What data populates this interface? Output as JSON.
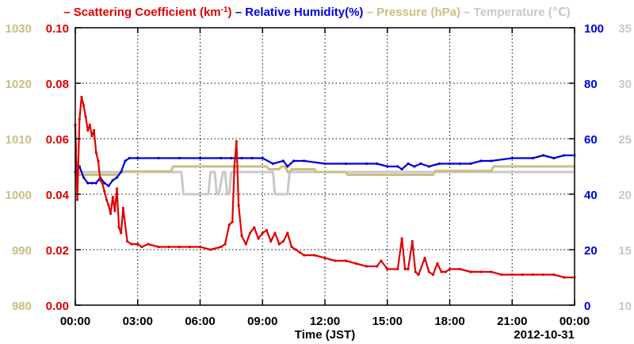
{
  "chart_data": {
    "type": "line",
    "legend": [
      {
        "key": "sc",
        "label": "– Scattering Coefficient (km",
        "sup": "-1",
        "tail": ")",
        "color": "#e00000"
      },
      {
        "key": "rh",
        "label": "– Relative Humidity(%)",
        "color": "#0000dd"
      },
      {
        "key": "pr",
        "label": "– Pressure (hPa)",
        "color": "#c9bf84"
      },
      {
        "key": "tp",
        "label": "– Temperature (℃)",
        "color": "#c8c8c8"
      }
    ],
    "xlabel": "Time (JST)",
    "date_label": "2012-10-31",
    "x_tick_labels": [
      "00:00",
      "03:00",
      "06:00",
      "09:00",
      "12:00",
      "15:00",
      "18:00",
      "21:00",
      "00:00"
    ],
    "xlim_hours": [
      0,
      24
    ],
    "axes": {
      "pressure": {
        "ylim": [
          980,
          1030
        ],
        "ticks": [
          "980",
          "990",
          "1000",
          "1010",
          "1020",
          "1030"
        ],
        "color": "#c9bf84"
      },
      "scattering": {
        "ylim": [
          0,
          0.1
        ],
        "ticks": [
          "0.00",
          "0.02",
          "0.04",
          "0.06",
          "0.08",
          "0.10"
        ],
        "color": "#e00000"
      },
      "humidity": {
        "ylim": [
          0,
          100
        ],
        "ticks": [
          "0",
          "20",
          "40",
          "60",
          "80",
          "100"
        ],
        "color": "#0000dd"
      },
      "temperature": {
        "ylim": [
          10,
          35
        ],
        "ticks": [
          "10",
          "15",
          "20",
          "25",
          "30",
          "35"
        ],
        "color": "#c8c8c8"
      }
    },
    "grid": true,
    "series": [
      {
        "name": "Scattering Coefficient",
        "axis": "scattering",
        "color": "#e00000",
        "markers": true,
        "x": [
          0,
          0.1,
          0.2,
          0.3,
          0.4,
          0.5,
          0.6,
          0.7,
          0.8,
          0.9,
          1.0,
          1.1,
          1.2,
          1.3,
          1.4,
          1.5,
          1.6,
          1.7,
          1.8,
          1.9,
          2.0,
          2.1,
          2.2,
          2.3,
          2.5,
          2.7,
          3.0,
          3.2,
          3.5,
          4.0,
          4.5,
          5.0,
          5.5,
          6.0,
          6.5,
          7.0,
          7.2,
          7.4,
          7.55,
          7.65,
          7.75,
          7.85,
          8.0,
          8.2,
          8.4,
          8.6,
          8.8,
          9.0,
          9.2,
          9.4,
          9.6,
          9.8,
          10.0,
          10.2,
          10.4,
          10.6,
          10.8,
          11.0,
          11.5,
          12.0,
          12.5,
          13.0,
          13.5,
          14.0,
          14.5,
          14.7,
          15.0,
          15.5,
          15.7,
          15.85,
          16.0,
          16.2,
          16.35,
          16.5,
          16.8,
          17.0,
          17.2,
          17.4,
          17.6,
          17.8,
          18.0,
          18.5,
          19.0,
          19.5,
          20.0,
          20.5,
          21.0,
          21.5,
          22.0,
          22.5,
          23.0,
          23.5,
          24.0
        ],
        "y": [
          0.065,
          0.038,
          0.067,
          0.075,
          0.072,
          0.068,
          0.063,
          0.065,
          0.061,
          0.063,
          0.055,
          0.052,
          0.045,
          0.044,
          0.041,
          0.038,
          0.036,
          0.033,
          0.039,
          0.034,
          0.042,
          0.028,
          0.026,
          0.035,
          0.023,
          0.022,
          0.022,
          0.021,
          0.022,
          0.021,
          0.021,
          0.021,
          0.021,
          0.021,
          0.02,
          0.021,
          0.022,
          0.029,
          0.03,
          0.05,
          0.059,
          0.036,
          0.025,
          0.022,
          0.026,
          0.028,
          0.024,
          0.026,
          0.027,
          0.023,
          0.026,
          0.022,
          0.023,
          0.026,
          0.021,
          0.02,
          0.019,
          0.018,
          0.018,
          0.017,
          0.016,
          0.016,
          0.015,
          0.014,
          0.014,
          0.016,
          0.013,
          0.013,
          0.024,
          0.013,
          0.013,
          0.023,
          0.012,
          0.011,
          0.017,
          0.012,
          0.011,
          0.015,
          0.012,
          0.012,
          0.013,
          0.013,
          0.012,
          0.012,
          0.012,
          0.011,
          0.011,
          0.011,
          0.011,
          0.011,
          0.011,
          0.01,
          0.01
        ]
      },
      {
        "name": "Relative Humidity",
        "axis": "humidity",
        "color": "#0000dd",
        "markers": true,
        "x": [
          0,
          0.2,
          0.4,
          0.6,
          0.8,
          1.0,
          1.2,
          1.4,
          1.6,
          1.8,
          2.0,
          2.2,
          2.4,
          2.6,
          3.0,
          4.0,
          5.0,
          6.0,
          7.0,
          7.5,
          8.0,
          8.5,
          9.0,
          9.5,
          10.0,
          10.2,
          10.5,
          11.0,
          12.0,
          13.0,
          14.0,
          14.5,
          15.0,
          15.5,
          15.7,
          16.0,
          16.3,
          16.6,
          17.0,
          17.5,
          18.0,
          18.5,
          19.0,
          19.5,
          20.0,
          21.0,
          22.0,
          22.5,
          23.0,
          23.5,
          24.0
        ],
        "y": [
          48,
          50,
          46,
          44,
          44,
          44,
          46,
          44,
          43,
          45,
          46,
          48,
          52,
          53,
          53,
          53,
          53,
          53,
          53,
          53,
          53,
          53,
          53,
          51,
          52,
          50,
          52,
          52,
          51,
          51,
          51,
          51,
          50,
          50,
          49,
          51,
          50,
          51,
          50,
          51,
          51,
          51,
          51,
          52,
          52,
          53,
          53,
          54,
          53,
          54,
          54
        ]
      },
      {
        "name": "Pressure",
        "axis": "pressure",
        "color": "#c9bf84",
        "markers": false,
        "x": [
          0,
          2,
          2.2,
          2.3,
          4.6,
          4.7,
          9.2,
          9.3,
          9.8,
          9.9,
          10.1,
          10.2,
          10.3,
          10.4,
          11.5,
          11.6,
          13.0,
          13.1,
          17.2,
          17.3,
          20.0,
          20.1,
          22.0,
          22.1,
          24.0
        ],
        "y": [
          1003.5,
          1003.5,
          1004.1,
          1004.1,
          1004.1,
          1005,
          1005,
          1004.5,
          1004.5,
          1005,
          1005,
          1004,
          1004,
          1004.5,
          1004.5,
          1004,
          1004,
          1003.5,
          1003.5,
          1004.2,
          1004.2,
          1005,
          1005,
          1005,
          1005
        ]
      },
      {
        "name": "Temperature",
        "axis": "temperature",
        "color": "#c8c8c8",
        "markers": false,
        "x": [
          0,
          5.1,
          5.2,
          6.4,
          6.5,
          6.7,
          6.8,
          6.9,
          7.1,
          7.2,
          7.3,
          7.4,
          7.5,
          9.5,
          9.6,
          10.2,
          10.3,
          13.0,
          24.0
        ],
        "y": [
          22,
          22,
          20,
          20,
          22,
          22,
          20,
          20,
          22,
          22,
          20,
          20,
          22,
          22,
          20,
          20,
          22,
          22,
          22
        ]
      }
    ]
  }
}
